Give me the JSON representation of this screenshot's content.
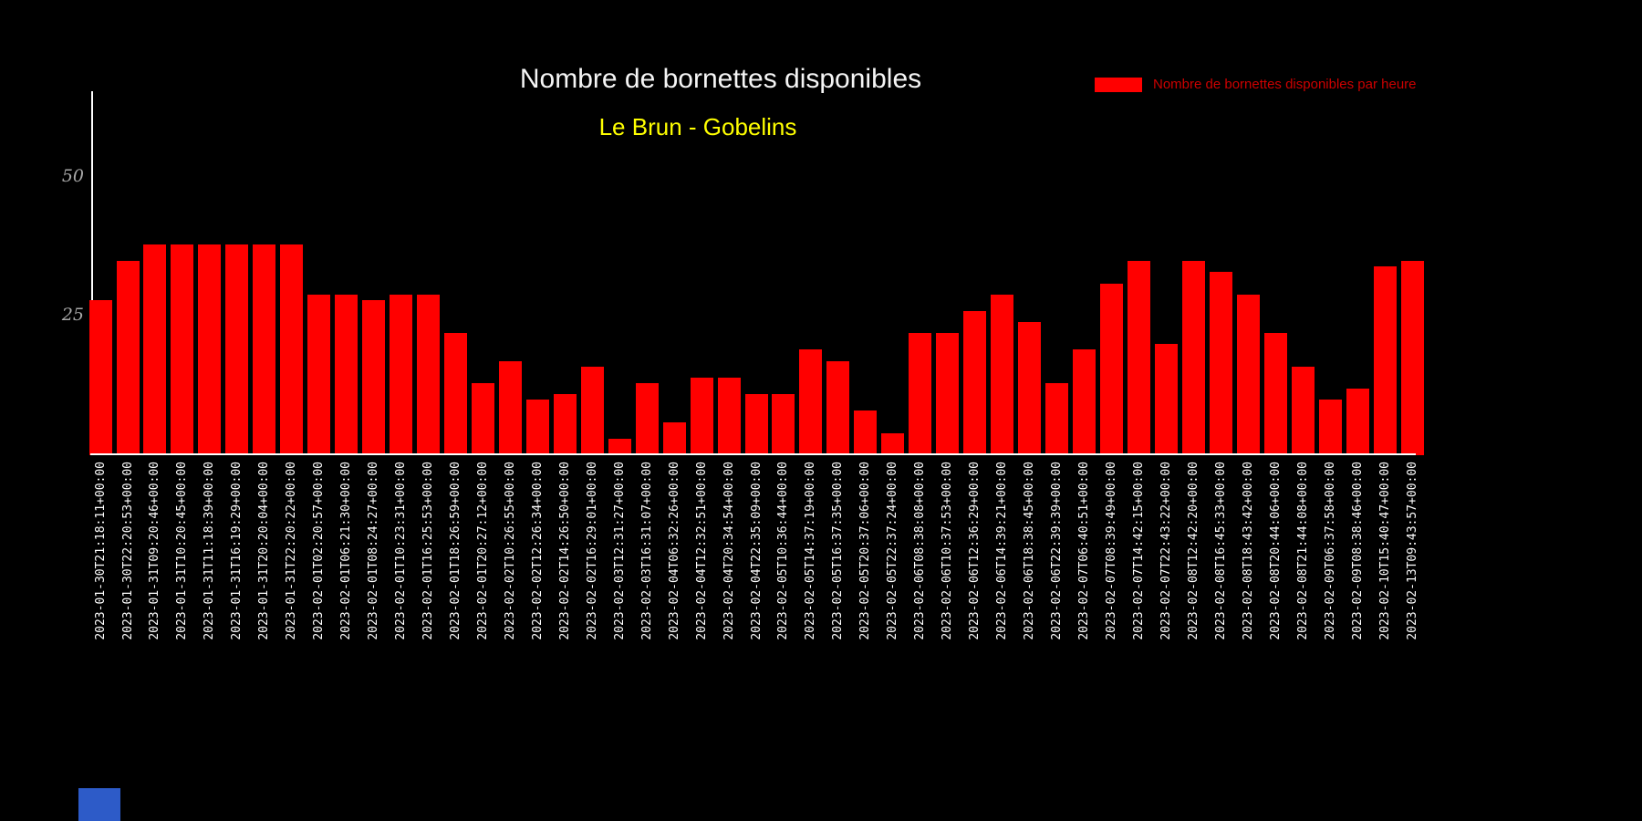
{
  "page": {
    "background": "#000000"
  },
  "header": {
    "title": "Nombre de bornettes disponibles",
    "subtitle": "Le Brun - Gobelins",
    "title_color": "#f5f5f5",
    "subtitle_color": "#ffff00"
  },
  "legend": {
    "label": "Nombre de bornettes disponibles par heure",
    "swatch_color": "#ff0000",
    "text_color": "#cc0000",
    "position": "top-right"
  },
  "chart_data": {
    "type": "bar",
    "title": "Nombre de bornettes disponibles",
    "subtitle": "Le Brun - Gobelins",
    "series_name": "Nombre de bornettes disponibles par heure",
    "bar_color": "#ff0000",
    "background_color": "#000000",
    "grid": false,
    "ylim": [
      0,
      66
    ],
    "yticks": [
      "25",
      "50"
    ],
    "ytick_color": "#a8a8a8",
    "xlabel_color": "#ffffff",
    "x": [
      "2023-01-30T21:18:11+00:00",
      "2023-01-30T22:20:53+00:00",
      "2023-01-31T09:20:46+00:00",
      "2023-01-31T10:20:45+00:00",
      "2023-01-31T11:18:39+00:00",
      "2023-01-31T16:19:29+00:00",
      "2023-01-31T20:20:04+00:00",
      "2023-01-31T22:20:22+00:00",
      "2023-02-01T02:20:57+00:00",
      "2023-02-01T06:21:30+00:00",
      "2023-02-01T08:24:27+00:00",
      "2023-02-01T10:23:31+00:00",
      "2023-02-01T16:25:53+00:00",
      "2023-02-01T18:26:59+00:00",
      "2023-02-01T20:27:12+00:00",
      "2023-02-02T10:26:55+00:00",
      "2023-02-02T12:26:34+00:00",
      "2023-02-02T14:26:50+00:00",
      "2023-02-02T16:29:01+00:00",
      "2023-02-03T12:31:27+00:00",
      "2023-02-03T16:31:07+00:00",
      "2023-02-04T06:32:26+00:00",
      "2023-02-04T12:32:51+00:00",
      "2023-02-04T20:34:54+00:00",
      "2023-02-04T22:35:09+00:00",
      "2023-02-05T10:36:44+00:00",
      "2023-02-05T14:37:19+00:00",
      "2023-02-05T16:37:35+00:00",
      "2023-02-05T20:37:06+00:00",
      "2023-02-05T22:37:24+00:00",
      "2023-02-06T08:38:08+00:00",
      "2023-02-06T10:37:53+00:00",
      "2023-02-06T12:36:29+00:00",
      "2023-02-06T14:39:21+00:00",
      "2023-02-06T18:38:45+00:00",
      "2023-02-06T22:39:39+00:00",
      "2023-02-07T06:40:51+00:00",
      "2023-02-07T08:39:49+00:00",
      "2023-02-07T14:42:15+00:00",
      "2023-02-07T22:43:22+00:00",
      "2023-02-08T12:42:20+00:00",
      "2023-02-08T16:45:33+00:00",
      "2023-02-08T18:43:42+00:00",
      "2023-02-08T20:44:06+00:00",
      "2023-02-08T21:44:08+00:00",
      "2023-02-09T06:37:58+00:00",
      "2023-02-09T08:38:46+00:00",
      "2023-02-10T15:40:47+00:00",
      "2023-02-13T09:43:57+00:00"
    ],
    "values": [
      28,
      35,
      38,
      38,
      38,
      38,
      38,
      38,
      29,
      29,
      28,
      29,
      29,
      22,
      13,
      17,
      10,
      11,
      16,
      3,
      13,
      6,
      14,
      14,
      11,
      11,
      19,
      17,
      8,
      4,
      22,
      22,
      26,
      29,
      24,
      13,
      19,
      31,
      35,
      20,
      35,
      33,
      29,
      22,
      16,
      10,
      12,
      34,
      35
    ]
  },
  "artifact": {
    "description": "blue window fragment bottom-left",
    "color": "#2d5bc8"
  }
}
